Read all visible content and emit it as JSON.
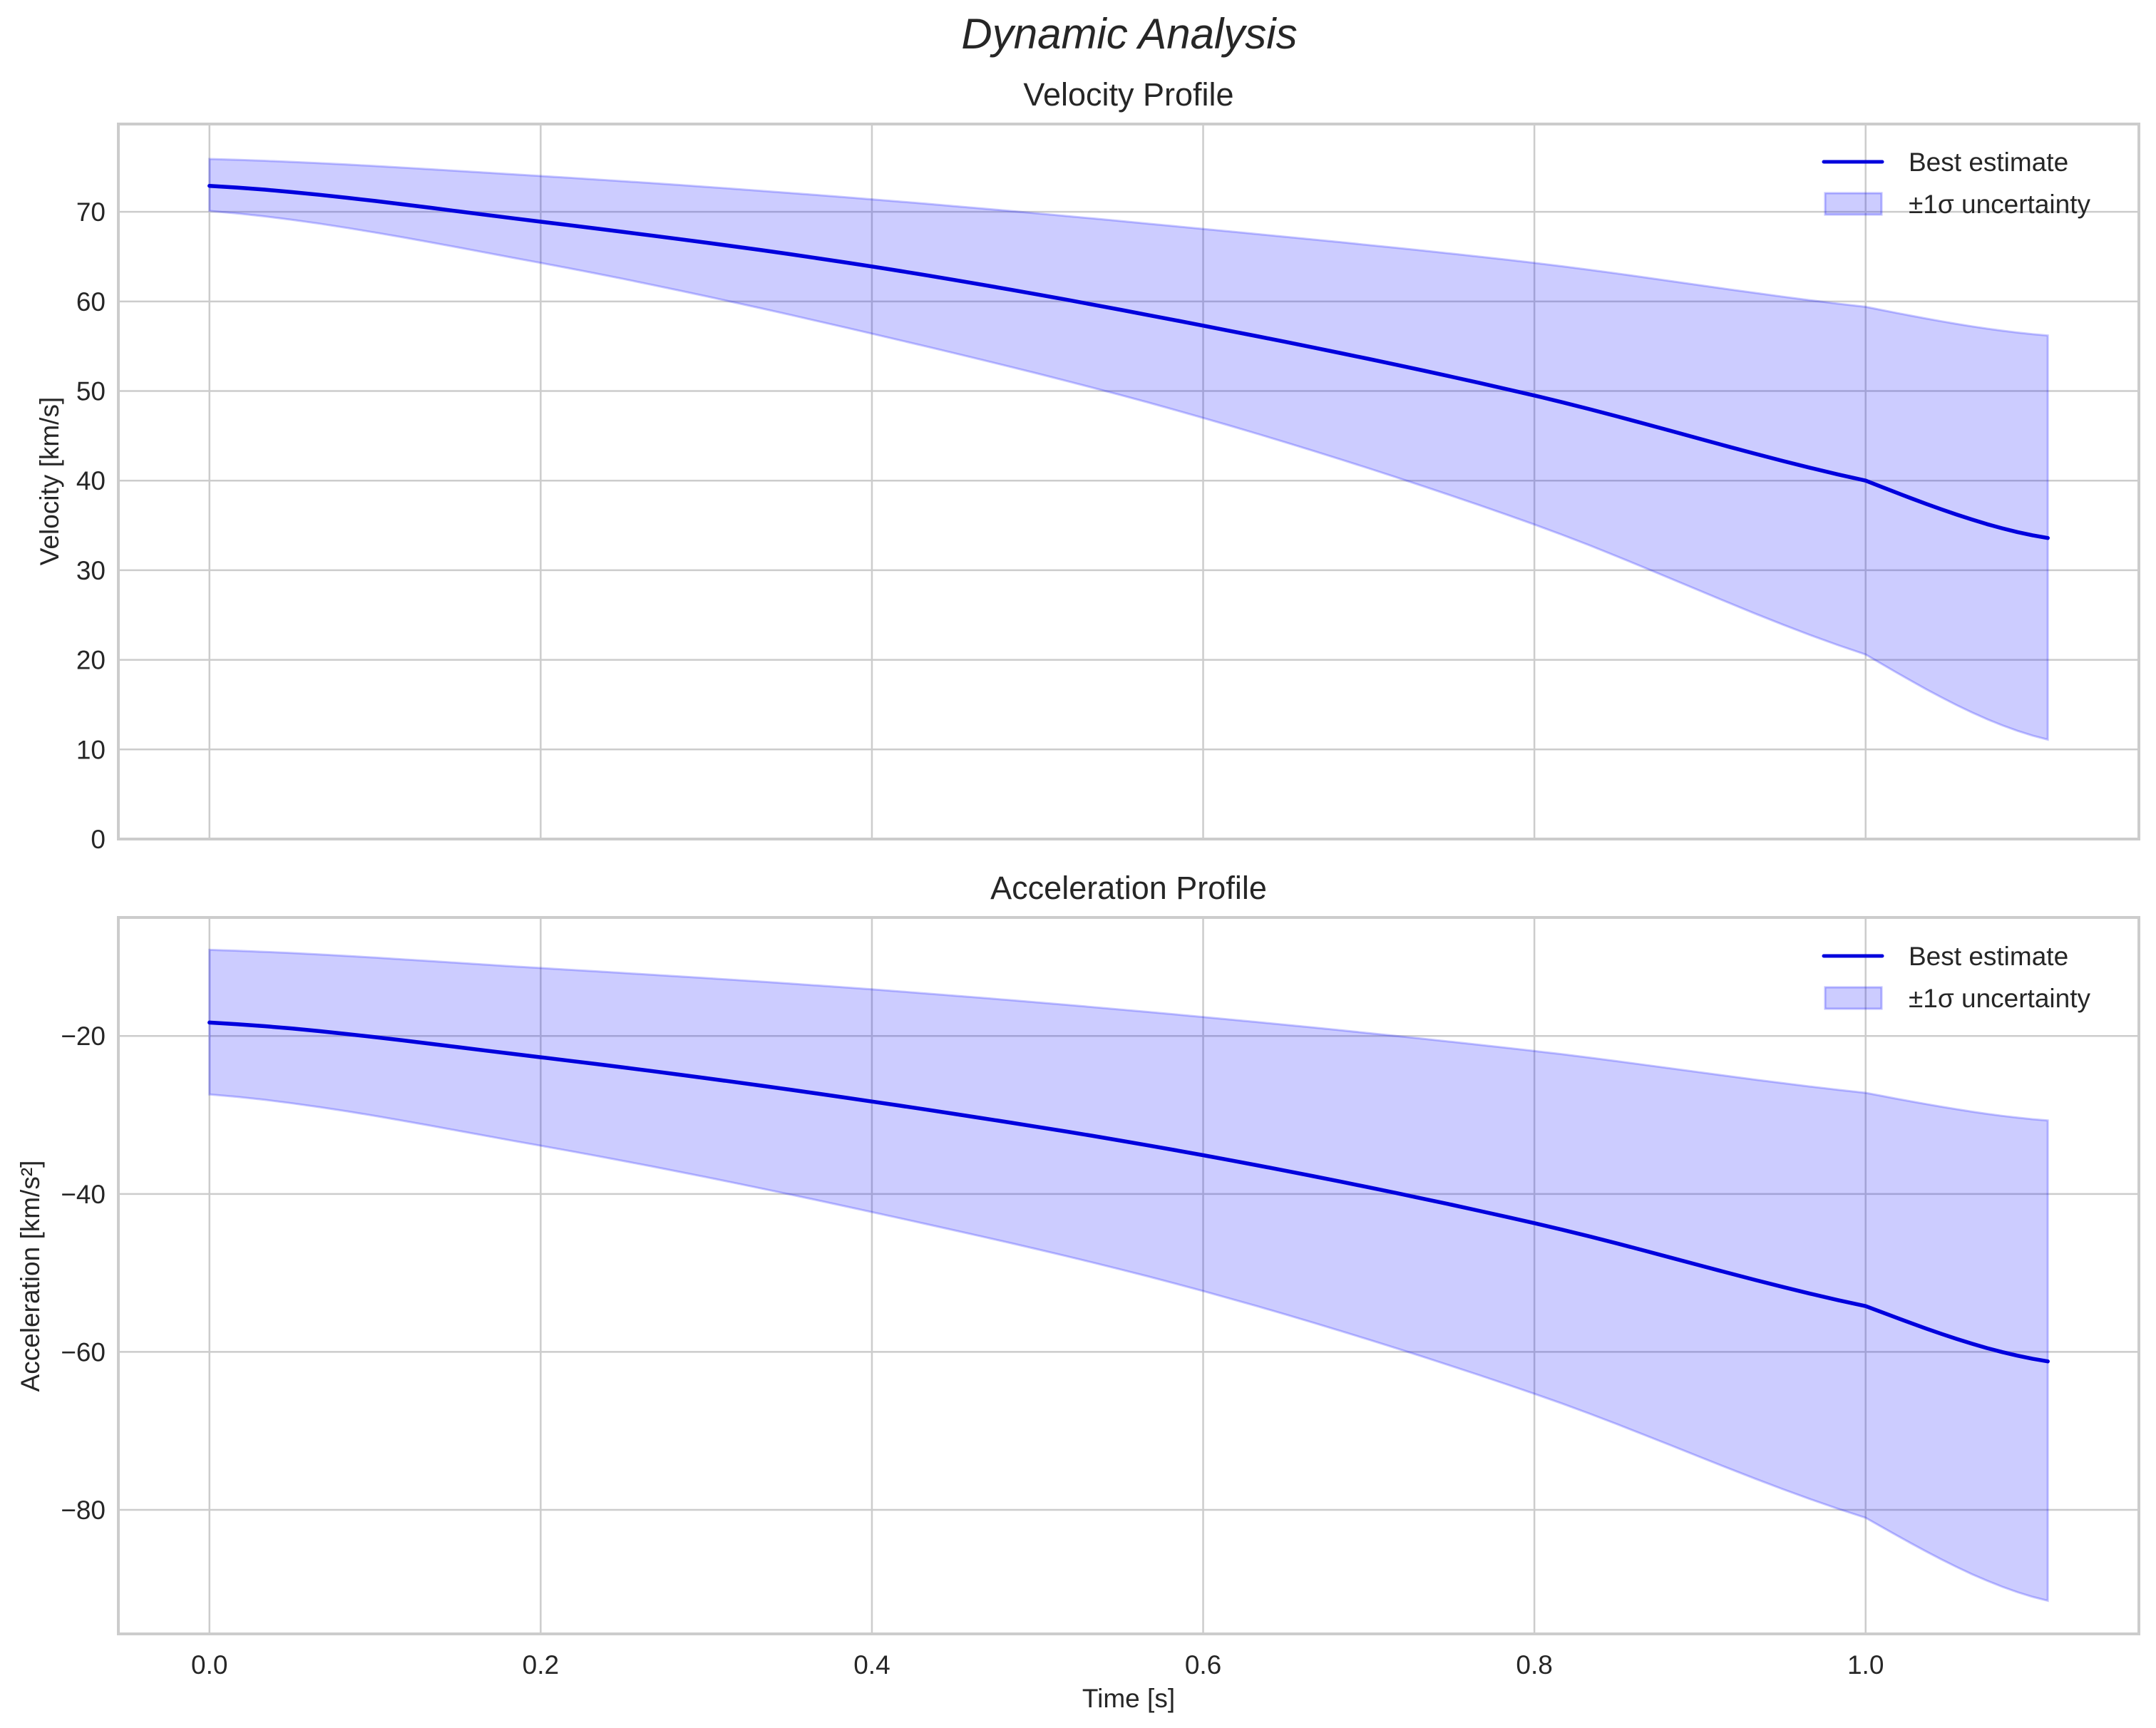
{
  "figure": {
    "suptitle": "Dynamic Analysis",
    "colors": {
      "line": "#0000dd",
      "band_fill": "#0000ff",
      "band_alpha": 0.2,
      "grid": "#cccccc",
      "spine": "#cccccc",
      "text": "#262626",
      "background": "#ffffff"
    }
  },
  "chart_data": [
    {
      "type": "line",
      "title": "Velocity Profile",
      "xlabel": "",
      "ylabel": "Velocity [km/s]",
      "xlim": [
        -0.055,
        1.165
      ],
      "ylim": [
        0,
        79.8
      ],
      "xticks": [
        0.0,
        0.2,
        0.4,
        0.6,
        0.8,
        1.0
      ],
      "xtick_labels": [],
      "yticks": [
        0,
        10,
        20,
        30,
        40,
        50,
        60,
        70
      ],
      "ytick_labels": [
        "0",
        "10",
        "20",
        "30",
        "40",
        "50",
        "60",
        "70"
      ],
      "grid": true,
      "legend_position": "upper right",
      "legend": [
        "Best estimate",
        "±1σ uncertainty"
      ],
      "x": [
        0.0,
        0.2,
        0.4,
        0.6,
        0.8,
        1.0,
        1.11
      ],
      "series": [
        {
          "name": "Best estimate",
          "kind": "line",
          "values": [
            72.9,
            68.9,
            63.9,
            57.3,
            49.5,
            40.0,
            33.6
          ]
        },
        {
          "name": "±1σ uncertainty",
          "kind": "band",
          "upper": [
            75.9,
            74.0,
            71.4,
            68.1,
            64.3,
            59.4,
            56.2
          ],
          "lower": [
            70.1,
            64.3,
            56.4,
            47.0,
            35.1,
            20.6,
            11.1
          ]
        }
      ]
    },
    {
      "type": "line",
      "title": "Acceleration Profile",
      "xlabel": "Time [s]",
      "ylabel": "Acceleration [km/s²]",
      "xlim": [
        -0.055,
        1.165
      ],
      "ylim": [
        -95.7,
        -5.0
      ],
      "xticks": [
        0.0,
        0.2,
        0.4,
        0.6,
        0.8,
        1.0
      ],
      "xtick_labels": [
        "0.0",
        "0.2",
        "0.4",
        "0.6",
        "0.8",
        "1.0"
      ],
      "yticks": [
        -20,
        -40,
        -60,
        -80
      ],
      "ytick_labels": [
        "−20",
        "−40",
        "−60",
        "−80"
      ],
      "grid": true,
      "legend_position": "upper right",
      "legend": [
        "Best estimate",
        "±1σ uncertainty"
      ],
      "x": [
        0.0,
        0.2,
        0.4,
        0.6,
        0.8,
        1.0,
        1.11
      ],
      "series": [
        {
          "name": "Best estimate",
          "kind": "line",
          "values": [
            -18.3,
            -22.7,
            -28.3,
            -35.1,
            -43.7,
            -54.2,
            -61.2
          ]
        },
        {
          "name": "±1σ uncertainty",
          "kind": "band",
          "upper": [
            -9.1,
            -11.4,
            -14.1,
            -17.6,
            -21.9,
            -27.2,
            -30.7
          ],
          "lower": [
            -27.4,
            -33.9,
            -42.3,
            -52.3,
            -65.3,
            -81.0,
            -91.5
          ]
        }
      ]
    }
  ]
}
